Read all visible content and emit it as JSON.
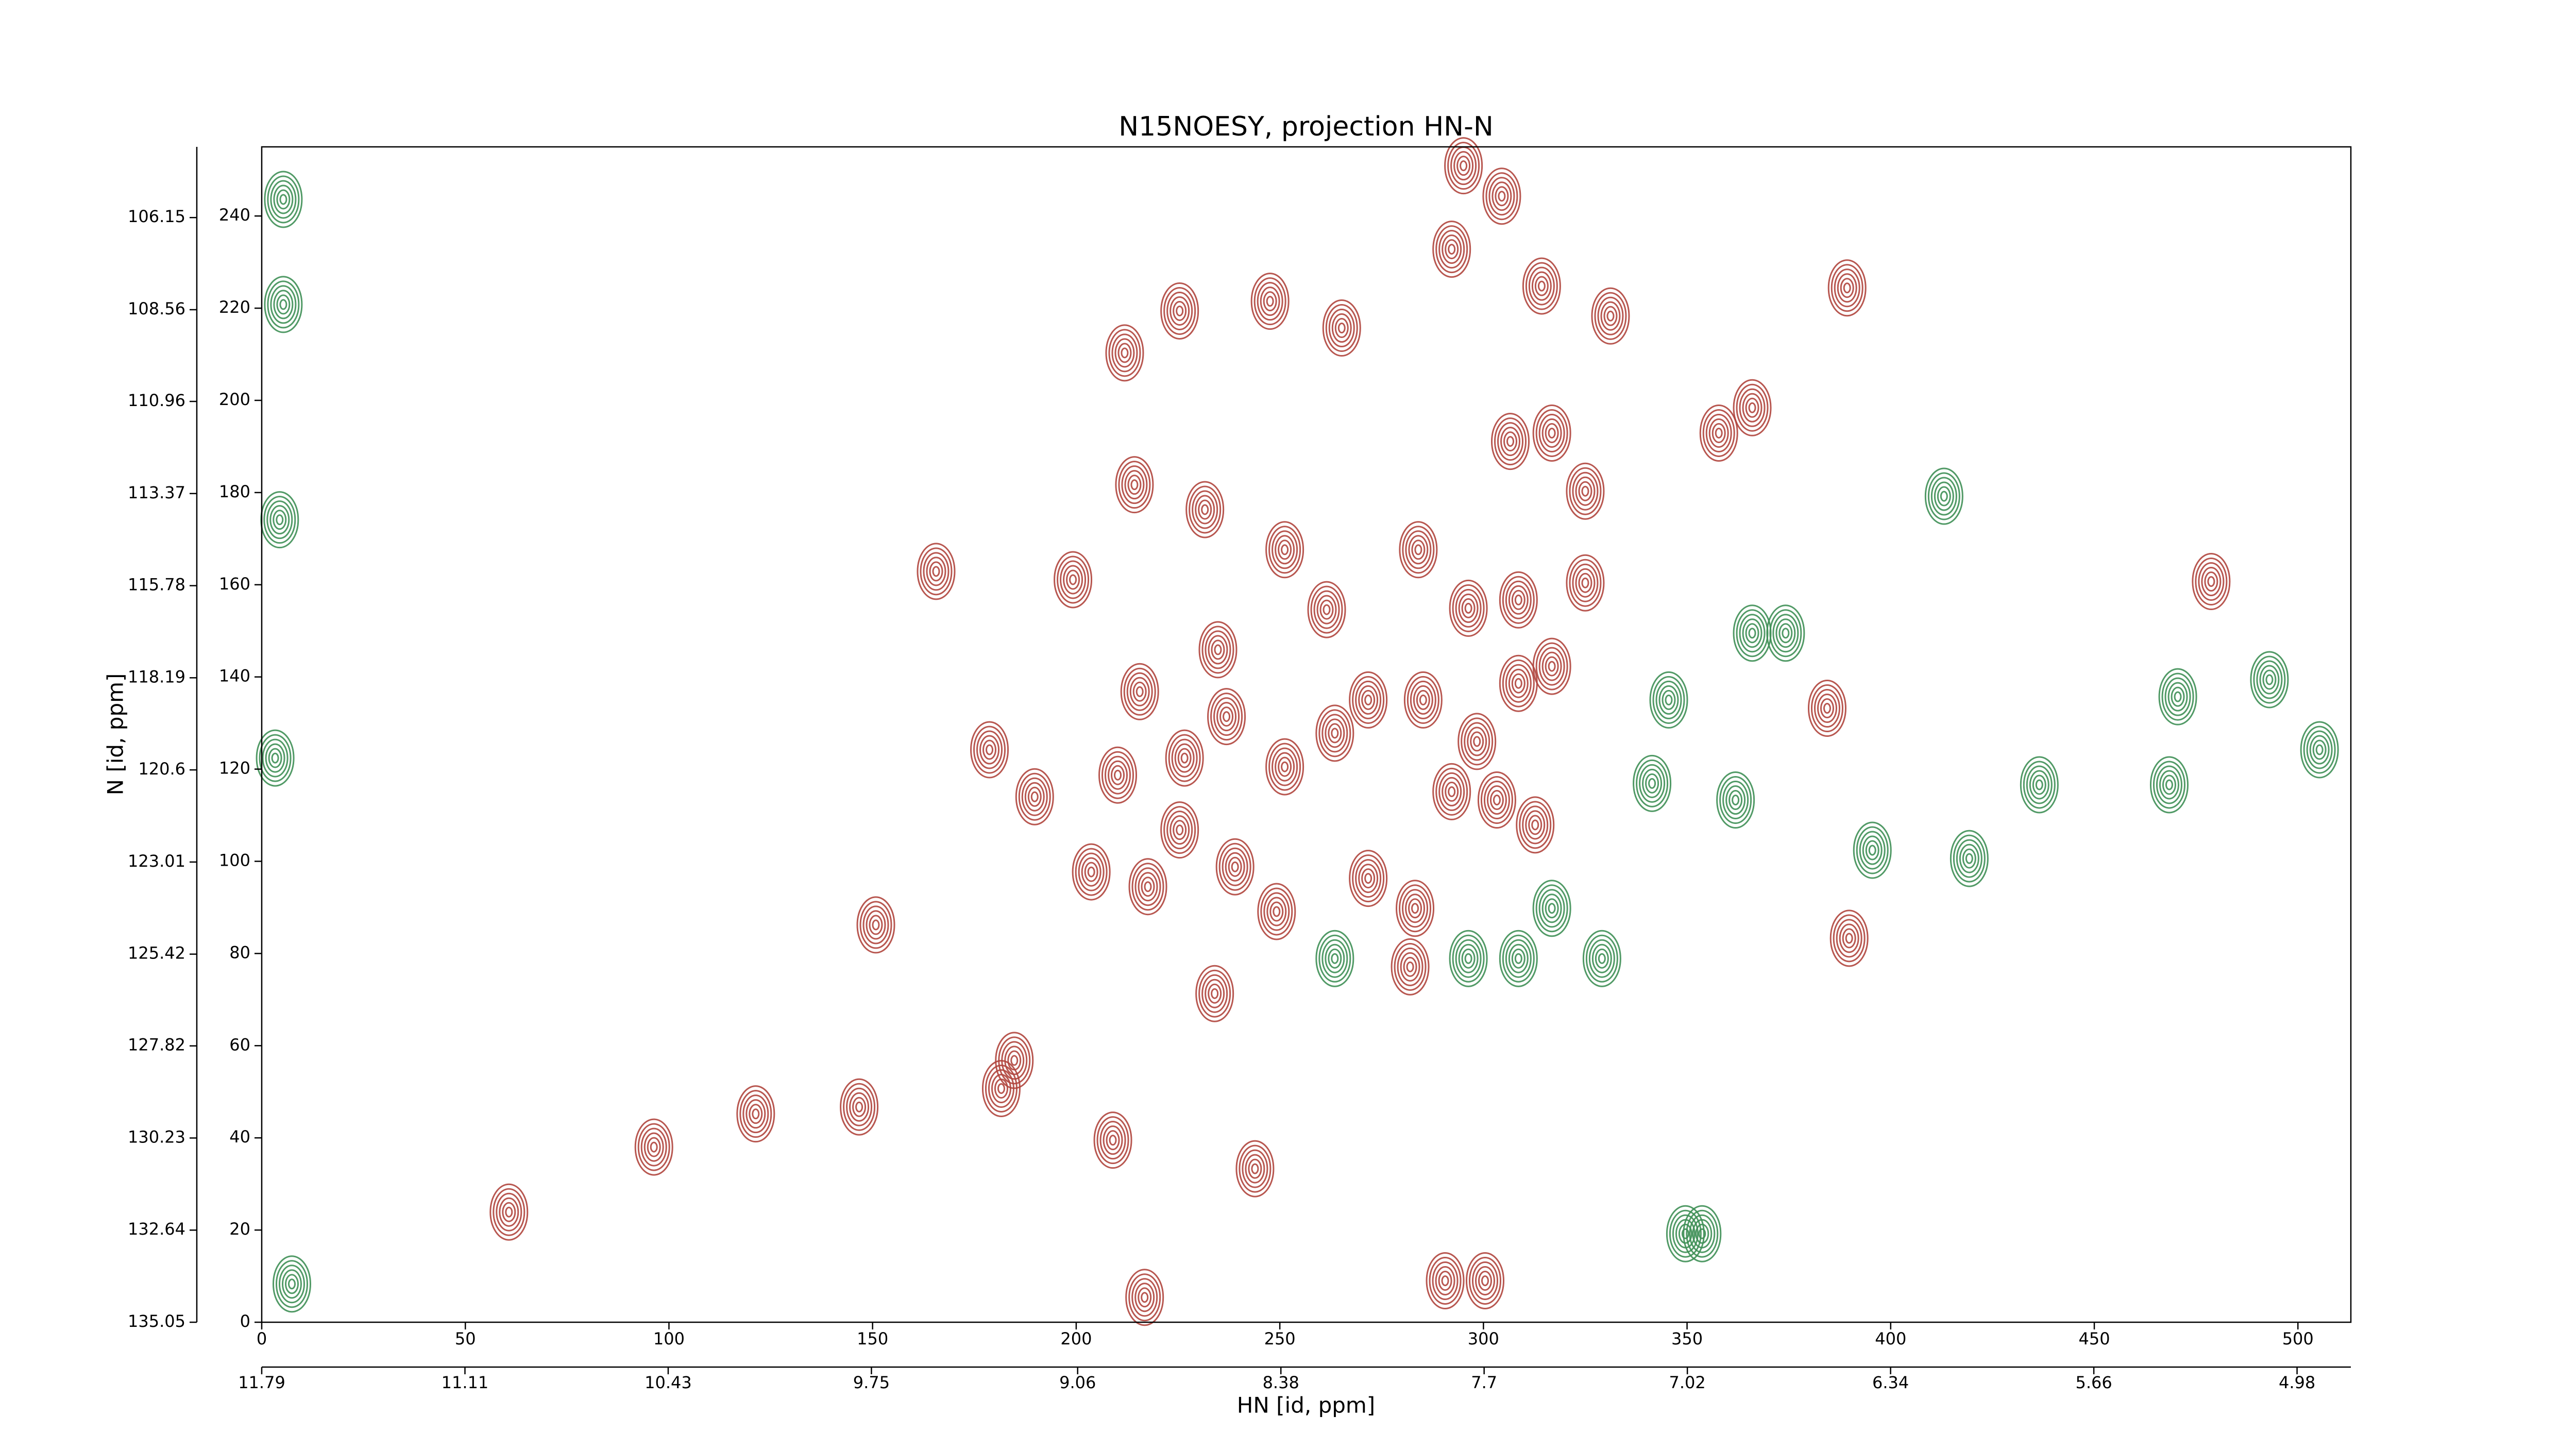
{
  "chart_data": {
    "type": "contour",
    "title": "N15NOESY, projection HN-N",
    "xlabel": "HN [id, ppm]",
    "ylabel": "N [id, ppm]",
    "xlim": [
      0,
      513
    ],
    "xticks": [
      0,
      50,
      100,
      150,
      200,
      250,
      300,
      350,
      400,
      450,
      500
    ],
    "ylim": [
      0,
      255
    ],
    "yticks": [
      0,
      20,
      40,
      60,
      80,
      100,
      120,
      140,
      160,
      180,
      200,
      220,
      240
    ],
    "x2lim": [
      11.79,
      4.8
    ],
    "x2ticks": [
      11.79,
      11.11,
      10.43,
      9.75,
      9.06,
      8.38,
      7.7,
      7.02,
      6.34,
      5.66,
      4.98
    ],
    "y2lim": [
      135.05,
      104.3
    ],
    "y2ticks": [
      135.05,
      132.64,
      130.23,
      127.82,
      125.42,
      123.01,
      120.6,
      118.19,
      115.78,
      113.37,
      110.96,
      108.56,
      106.15
    ],
    "series": [
      {
        "color": "#b0453d",
        "x": [
          60.7,
          96.3,
          121.3,
          146.7,
          181.6,
          184.8,
          209,
          243.9,
          216.8,
          150.8,
          165.6,
          199.2,
          214.3,
          211.9,
          225.4,
          247.6,
          265.2,
          292.2,
          295.1,
          304.5,
          314.3,
          331.2,
          389.3,
          231.6,
          251.2,
          261.5,
          234.8,
          215.6,
          236.9,
          226.6,
          210.2,
          189.8,
          178.7,
          203.7,
          225.4,
          217.6,
          239,
          234,
          249.2,
          271.7,
          283.2,
          251.2,
          263.5,
          271.7,
          285.2,
          292.2,
          303.3,
          312.7,
          298.4,
          308.6,
          316.8,
          325,
          308.6,
          296.3,
          284,
          306.6,
          316.8,
          325,
          357.8,
          366,
          384.4,
          389.8,
          478.7,
          290.6,
          300.4,
          282
        ],
        "values": [
          23.9,
          38,
          45.2,
          46.7,
          50.7,
          56.8,
          39.5,
          33.3,
          5.4,
          86.2,
          162.9,
          161.1,
          181.7,
          210.3,
          219.4,
          221.5,
          215.7,
          232.8,
          250.9,
          244.3,
          224.8,
          218.3,
          224.4,
          176.3,
          167.6,
          154.6,
          145.9,
          136.8,
          131.4,
          122.4,
          118.7,
          114,
          124.2,
          97.7,
          106.8,
          94.5,
          98.8,
          71.3,
          89.1,
          96.3,
          89.8,
          120.5,
          127.8,
          135,
          135,
          115.1,
          113.3,
          107.9,
          126,
          138.6,
          142.3,
          160.4,
          156.7,
          154.9,
          167.6,
          191.1,
          192.9,
          180.3,
          192.9,
          198.4,
          133.2,
          83.3,
          160.7,
          9,
          9,
          77.1
        ]
      },
      {
        "color": "#3e8f55",
        "x": [
          470.5,
          436.5,
          468.4,
          493,
          505.3,
          4.4,
          5.3,
          5.3,
          3.3,
          7.4,
          349.6,
          419.3,
          366,
          374.2,
          316.8,
          329.1,
          263.5,
          296.3,
          308.6,
          341.4,
          361.9,
          395.5,
          345.5,
          413.1,
          353.7
        ],
        "values": [
          135.7,
          116.6,
          116.6,
          139.4,
          124.2,
          174.1,
          243.6,
          220.8,
          122.4,
          8.3,
          19.2,
          100.6,
          149.5,
          149.5,
          89.8,
          78.9,
          78.9,
          78.9,
          78.9,
          116.9,
          113.3,
          102.4,
          135,
          179.2,
          19.2
        ]
      }
    ]
  }
}
